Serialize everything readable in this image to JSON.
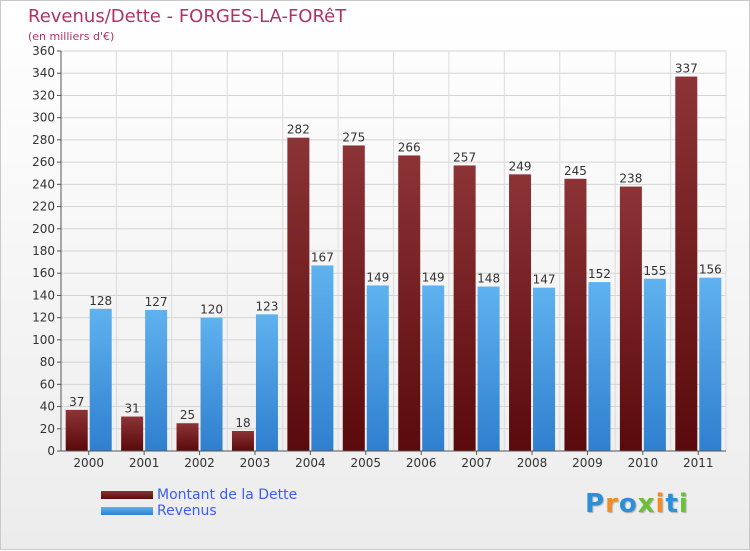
{
  "header": {
    "title": "Revenus/Dette - FORGES-LA-FORêT",
    "subtitle": "(en milliers d'€)"
  },
  "chart_data": {
    "type": "bar",
    "title": "Revenus/Dette - FORGES-LA-FORêT",
    "subtitle": "(en milliers d'€)",
    "xlabel": "",
    "ylabel": "",
    "ylim": [
      0,
      360
    ],
    "ytick_step": 20,
    "grid": true,
    "legend_position": "bottom-left",
    "categories": [
      "2000",
      "2001",
      "2002",
      "2003",
      "2004",
      "2005",
      "2006",
      "2007",
      "2008",
      "2009",
      "2010",
      "2011"
    ],
    "series": [
      {
        "name": "Montant de la Dette",
        "color": "#7a1b1d",
        "values": [
          37,
          31,
          25,
          18,
          282,
          275,
          266,
          257,
          249,
          245,
          238,
          337
        ]
      },
      {
        "name": "Revenus",
        "color": "#4a9fe6",
        "values": [
          128,
          127,
          120,
          123,
          167,
          149,
          149,
          148,
          147,
          152,
          155,
          156
        ]
      }
    ]
  },
  "logo": {
    "letters": [
      "P",
      "r",
      "o",
      "x",
      "i",
      "t",
      "i"
    ],
    "colors": [
      "#2f8fd6",
      "#f28c28",
      "#2f8fd6",
      "#6cbf3a",
      "#f28c28",
      "#2f8fd6",
      "#6cbf3a"
    ]
  }
}
